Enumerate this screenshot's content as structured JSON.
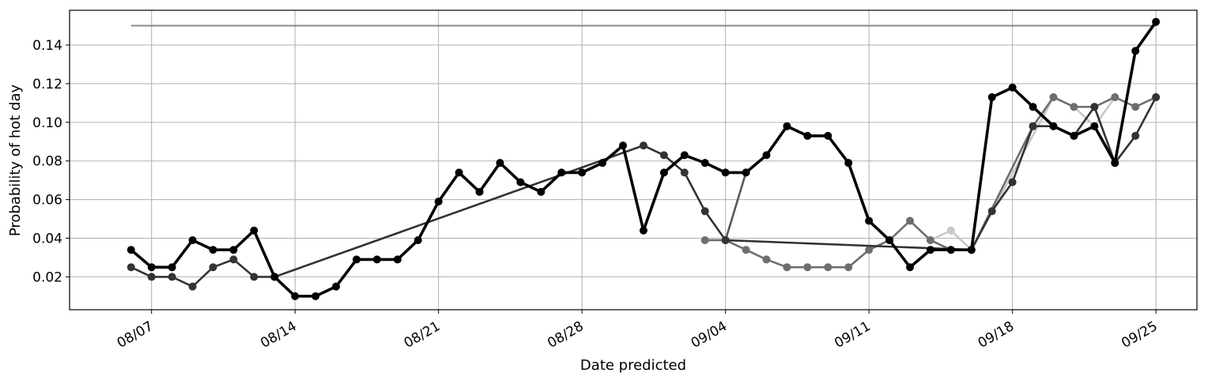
{
  "chart_data": {
    "type": "line",
    "title": "",
    "xlabel": "Date predicted",
    "ylabel": "Probability of hot day",
    "grid": true,
    "legend": "none",
    "x_range": [
      "2023-08-03",
      "2023-09-27"
    ],
    "ylim": [
      0.003,
      0.158
    ],
    "x_ticks": [
      {
        "date": "2023-08-07",
        "label": "08/07"
      },
      {
        "date": "2023-08-14",
        "label": "08/14"
      },
      {
        "date": "2023-08-21",
        "label": "08/21"
      },
      {
        "date": "2023-08-28",
        "label": "08/28"
      },
      {
        "date": "2023-09-04",
        "label": "09/04"
      },
      {
        "date": "2023-09-11",
        "label": "09/11"
      },
      {
        "date": "2023-09-18",
        "label": "09/18"
      },
      {
        "date": "2023-09-25",
        "label": "09/25"
      }
    ],
    "y_ticks": [
      {
        "value": 0.02,
        "label": "0.02"
      },
      {
        "value": 0.04,
        "label": "0.04"
      },
      {
        "value": 0.06,
        "label": "0.06"
      },
      {
        "value": 0.08,
        "label": "0.08"
      },
      {
        "value": 0.1,
        "label": "0.10"
      },
      {
        "value": 0.12,
        "label": "0.12"
      },
      {
        "value": 0.14,
        "label": "0.14"
      }
    ],
    "reference_line": {
      "x": [
        "2023-08-06",
        "2023-09-25"
      ],
      "y": 0.15,
      "color": "#888888"
    },
    "series": [
      {
        "color": "#c8c8c8",
        "points": [
          [
            "2023-09-13",
            0.049
          ],
          [
            "2023-09-14",
            0.039
          ],
          [
            "2023-09-15",
            0.044
          ],
          [
            "2023-09-16",
            0.034
          ],
          [
            "2023-09-20",
            0.113
          ],
          [
            "2023-09-21",
            0.108
          ],
          [
            "2023-09-22",
            0.098
          ],
          [
            "2023-09-23",
            0.113
          ]
        ]
      },
      {
        "color": "#6e6e6e",
        "points": [
          [
            "2023-09-03",
            0.039
          ],
          [
            "2023-09-04",
            0.039
          ],
          [
            "2023-09-05",
            0.034
          ],
          [
            "2023-09-06",
            0.029
          ],
          [
            "2023-09-07",
            0.025
          ],
          [
            "2023-09-08",
            0.025
          ],
          [
            "2023-09-09",
            0.025
          ],
          [
            "2023-09-10",
            0.025
          ],
          [
            "2023-09-11",
            0.034
          ],
          [
            "2023-09-12",
            0.039
          ],
          [
            "2023-09-13",
            0.049
          ],
          [
            "2023-09-14",
            0.039
          ],
          [
            "2023-09-15",
            0.034
          ],
          [
            "2023-09-16",
            0.034
          ],
          [
            "2023-09-19",
            0.098
          ],
          [
            "2023-09-20",
            0.113
          ],
          [
            "2023-09-21",
            0.108
          ],
          [
            "2023-09-22",
            0.108
          ],
          [
            "2023-09-23",
            0.113
          ],
          [
            "2023-09-24",
            0.108
          ],
          [
            "2023-09-25",
            0.113
          ]
        ]
      },
      {
        "color": "#575757",
        "points": [
          [
            "2023-09-04",
            0.039
          ],
          [
            "2023-09-05",
            0.074
          ]
        ]
      },
      {
        "color": "#333333",
        "points": [
          [
            "2023-08-06",
            0.025
          ],
          [
            "2023-08-07",
            0.02
          ],
          [
            "2023-08-08",
            0.02
          ],
          [
            "2023-08-09",
            0.015
          ],
          [
            "2023-08-10",
            0.025
          ],
          [
            "2023-08-11",
            0.029
          ],
          [
            "2023-08-12",
            0.02
          ],
          [
            "2023-08-13",
            0.02
          ],
          [
            "2023-08-31",
            0.088
          ],
          [
            "2023-09-01",
            0.083
          ],
          [
            "2023-09-02",
            0.074
          ],
          [
            "2023-09-03",
            0.054
          ],
          [
            "2023-09-04",
            0.039
          ],
          [
            "2023-09-16",
            0.034
          ],
          [
            "2023-09-17",
            0.054
          ],
          [
            "2023-09-18",
            0.069
          ],
          [
            "2023-09-19",
            0.098
          ],
          [
            "2023-09-20",
            0.098
          ],
          [
            "2023-09-21",
            0.093
          ],
          [
            "2023-09-22",
            0.108
          ],
          [
            "2023-09-23",
            0.079
          ],
          [
            "2023-09-24",
            0.093
          ],
          [
            "2023-09-25",
            0.113
          ]
        ]
      },
      {
        "color": "#000000",
        "points": [
          [
            "2023-08-06",
            0.034
          ],
          [
            "2023-08-07",
            0.025
          ],
          [
            "2023-08-08",
            0.025
          ],
          [
            "2023-08-09",
            0.039
          ],
          [
            "2023-08-10",
            0.034
          ],
          [
            "2023-08-11",
            0.034
          ],
          [
            "2023-08-12",
            0.044
          ],
          [
            "2023-08-13",
            0.02
          ],
          [
            "2023-08-14",
            0.01
          ],
          [
            "2023-08-15",
            0.01
          ],
          [
            "2023-08-16",
            0.015
          ],
          [
            "2023-08-17",
            0.029
          ],
          [
            "2023-08-18",
            0.029
          ],
          [
            "2023-08-19",
            0.029
          ],
          [
            "2023-08-20",
            0.039
          ],
          [
            "2023-08-21",
            0.059
          ],
          [
            "2023-08-22",
            0.074
          ],
          [
            "2023-08-23",
            0.064
          ],
          [
            "2023-08-24",
            0.079
          ],
          [
            "2023-08-25",
            0.069
          ],
          [
            "2023-08-26",
            0.064
          ],
          [
            "2023-08-27",
            0.074
          ],
          [
            "2023-08-28",
            0.074
          ],
          [
            "2023-08-29",
            0.079
          ],
          [
            "2023-08-30",
            0.088
          ],
          [
            "2023-08-31",
            0.044
          ],
          [
            "2023-09-01",
            0.074
          ],
          [
            "2023-09-02",
            0.083
          ],
          [
            "2023-09-03",
            0.079
          ],
          [
            "2023-09-04",
            0.074
          ],
          [
            "2023-09-05",
            0.074
          ],
          [
            "2023-09-06",
            0.083
          ],
          [
            "2023-09-07",
            0.098
          ],
          [
            "2023-09-08",
            0.093
          ],
          [
            "2023-09-09",
            0.093
          ],
          [
            "2023-09-10",
            0.079
          ],
          [
            "2023-09-11",
            0.049
          ],
          [
            "2023-09-12",
            0.039
          ],
          [
            "2023-09-13",
            0.025
          ],
          [
            "2023-09-14",
            0.034
          ],
          [
            "2023-09-15",
            0.034
          ],
          [
            "2023-09-16",
            0.034
          ],
          [
            "2023-09-17",
            0.113
          ],
          [
            "2023-09-18",
            0.118
          ],
          [
            "2023-09-19",
            0.108
          ],
          [
            "2023-09-20",
            0.098
          ],
          [
            "2023-09-21",
            0.093
          ],
          [
            "2023-09-22",
            0.098
          ],
          [
            "2023-09-23",
            0.079
          ],
          [
            "2023-09-24",
            0.137
          ],
          [
            "2023-09-25",
            0.152
          ]
        ]
      }
    ]
  }
}
